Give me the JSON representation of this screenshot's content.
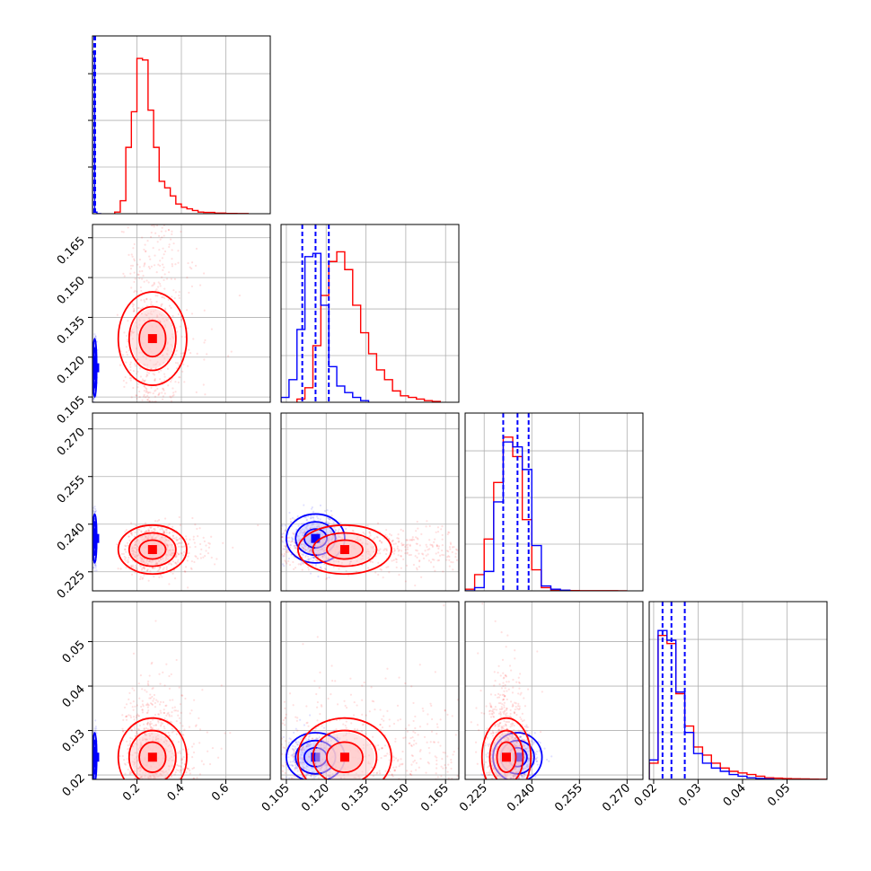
{
  "chart_data": {
    "type": "corner",
    "colors": {
      "blue": "#0000ff",
      "red": "#ff0000",
      "grid": "#b0b0b0"
    },
    "series": [
      {
        "color": "blue",
        "mean": [
          0.01,
          0.116,
          0.2355,
          0.024
        ],
        "sd": [
          0.004,
          0.005,
          0.0035,
          0.0025
        ],
        "quantiles_16_50_84": [
          [
            0.008,
            0.01,
            0.012
          ],
          [
            0.111,
            0.116,
            0.121
          ],
          [
            0.231,
            0.2355,
            0.239
          ],
          [
            0.022,
            0.024,
            0.027
          ]
        ]
      },
      {
        "color": "red",
        "mean": [
          0.27,
          0.127,
          0.232,
          0.024
        ],
        "sd": [
          0.07,
          0.008,
          0.0035,
          0.004
        ]
      }
    ],
    "axes": [
      {
        "range": [
          0.0,
          0.8
        ],
        "ticks": [
          0.2,
          0.4,
          0.6
        ],
        "tick_labels": [
          "0.2",
          "0.4",
          "0.6"
        ]
      },
      {
        "range": [
          0.103,
          0.17
        ],
        "ticks": [
          0.105,
          0.12,
          0.135,
          0.15,
          0.165
        ],
        "tick_labels": [
          "0.105",
          "0.120",
          "0.135",
          "0.150",
          "0.165"
        ]
      },
      {
        "range": [
          0.219,
          0.275
        ],
        "ticks": [
          0.225,
          0.24,
          0.255,
          0.27
        ],
        "tick_labels": [
          "0.225",
          "0.240",
          "0.255",
          "0.270"
        ]
      },
      {
        "range": [
          0.019,
          0.059
        ],
        "ticks": [
          0.02,
          0.03,
          0.04,
          0.05
        ],
        "tick_labels": [
          "0.02",
          "0.03",
          "0.04",
          "0.05"
        ]
      }
    ],
    "histograms": {
      "0": {
        "blue": {
          "bins": [
            0.0,
            0.01,
            0.02,
            0.03,
            0.04
          ],
          "values": [
            1.0,
            0.01,
            0.0,
            0.0
          ]
        },
        "red": {
          "bins": [
            0.1,
            0.125,
            0.15,
            0.175,
            0.2,
            0.225,
            0.25,
            0.275,
            0.3,
            0.325,
            0.35,
            0.375,
            0.4,
            0.425,
            0.45,
            0.475,
            0.5,
            0.55,
            0.6,
            0.65,
            0.7
          ],
          "values": [
            0.01,
            0.08,
            0.41,
            0.63,
            0.96,
            0.95,
            0.64,
            0.41,
            0.2,
            0.16,
            0.11,
            0.06,
            0.04,
            0.03,
            0.02,
            0.01,
            0.008,
            0.004,
            0.002,
            0.001
          ]
        }
      },
      "1": {
        "blue": {
          "bins": [
            0.103,
            0.106,
            0.109,
            0.112,
            0.115,
            0.118,
            0.121,
            0.124,
            0.127,
            0.13,
            0.133,
            0.136
          ],
          "values": [
            0.03,
            0.14,
            0.45,
            0.9,
            0.92,
            0.6,
            0.22,
            0.1,
            0.06,
            0.03,
            0.01
          ]
        },
        "red": {
          "bins": [
            0.109,
            0.112,
            0.115,
            0.118,
            0.121,
            0.124,
            0.127,
            0.13,
            0.133,
            0.136,
            0.139,
            0.142,
            0.145,
            0.148,
            0.151,
            0.154,
            0.157,
            0.16,
            0.163
          ],
          "values": [
            0.02,
            0.09,
            0.35,
            0.66,
            0.87,
            0.93,
            0.82,
            0.6,
            0.43,
            0.3,
            0.2,
            0.14,
            0.07,
            0.04,
            0.03,
            0.02,
            0.01,
            0.005
          ]
        }
      },
      "2": {
        "blue": {
          "bins": [
            0.219,
            0.222,
            0.225,
            0.228,
            0.231,
            0.234,
            0.237,
            0.24,
            0.243,
            0.246,
            0.249,
            0.252
          ],
          "values": [
            0.0,
            0.02,
            0.12,
            0.55,
            0.92,
            0.89,
            0.75,
            0.28,
            0.03,
            0.01,
            0.004
          ]
        },
        "red": {
          "bins": [
            0.219,
            0.222,
            0.225,
            0.228,
            0.231,
            0.234,
            0.237,
            0.24,
            0.243,
            0.246,
            0.249,
            0.252,
            0.255,
            0.258,
            0.261,
            0.264,
            0.267,
            0.27
          ],
          "values": [
            0.01,
            0.1,
            0.32,
            0.67,
            0.95,
            0.83,
            0.44,
            0.13,
            0.02,
            0.004,
            0.003,
            0.002,
            0.001,
            0.001,
            0.001,
            0.001,
            0.0
          ]
        }
      },
      "3": {
        "blue": {
          "bins": [
            0.019,
            0.021,
            0.023,
            0.025,
            0.027,
            0.029,
            0.031,
            0.033,
            0.035,
            0.037,
            0.039,
            0.041,
            0.043,
            0.045,
            0.047
          ],
          "values": [
            0.12,
            0.92,
            0.86,
            0.54,
            0.29,
            0.16,
            0.1,
            0.07,
            0.05,
            0.03,
            0.02,
            0.01,
            0.006,
            0.003
          ]
        },
        "red": {
          "bins": [
            0.019,
            0.021,
            0.023,
            0.025,
            0.027,
            0.029,
            0.031,
            0.033,
            0.035,
            0.037,
            0.039,
            0.041,
            0.043,
            0.045,
            0.047,
            0.049,
            0.051,
            0.053,
            0.055,
            0.057,
            0.059
          ],
          "values": [
            0.1,
            0.89,
            0.84,
            0.53,
            0.33,
            0.2,
            0.15,
            0.1,
            0.07,
            0.05,
            0.04,
            0.03,
            0.02,
            0.01,
            0.008,
            0.005,
            0.004,
            0.003,
            0.002,
            0.001
          ]
        }
      }
    },
    "grid": true
  }
}
